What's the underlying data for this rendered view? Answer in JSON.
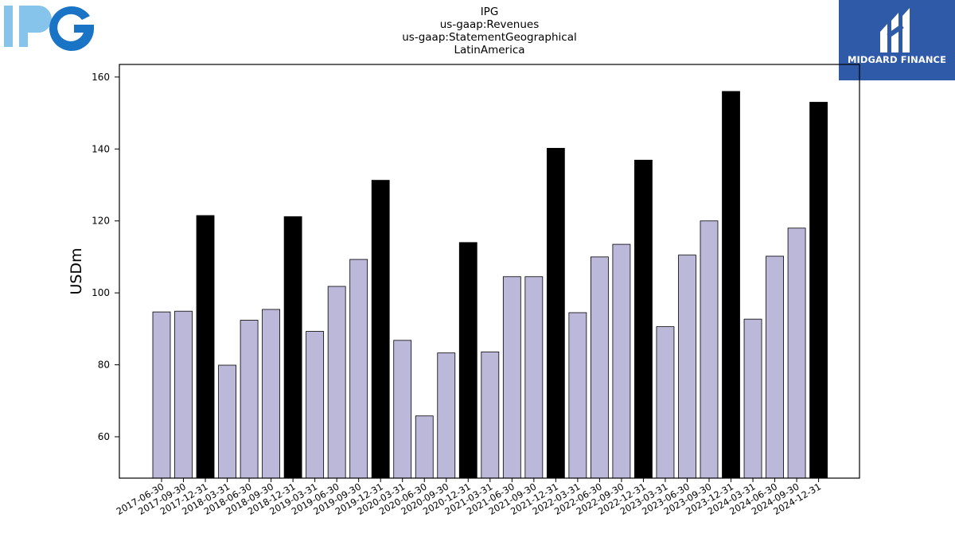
{
  "header": {
    "title_lines": [
      "IPG",
      "us-gaap:Revenues",
      "us-gaap:StatementGeographical",
      "LatinAmerica"
    ]
  },
  "logos": {
    "company_logo": "IPG",
    "brand_badge": "MIDGARD FINANCE"
  },
  "colors": {
    "bar_quarter": "#bcb8da",
    "bar_year_end": "#000000",
    "ipg_light": "#86c4ec",
    "ipg_dark": "#1a74c6",
    "brand_bg": "#2f5aa8"
  },
  "chart_data": {
    "type": "bar",
    "title": "IPG us-gaap:Revenues us-gaap:StatementGeographical LatinAmerica",
    "xlabel": "",
    "ylabel": "USDm",
    "ylim": [
      48.5,
      163.5
    ],
    "yticks": [
      60,
      80,
      100,
      120,
      140,
      160
    ],
    "grid": false,
    "categories": [
      "2017-06-30",
      "2017-09-30",
      "2017-12-31",
      "2018-03-31",
      "2018-06-30",
      "2018-09-30",
      "2018-12-31",
      "2019-03-31",
      "2019-06-30",
      "2019-09-30",
      "2019-12-31",
      "2020-03-31",
      "2020-06-30",
      "2020-09-30",
      "2020-12-31",
      "2021-03-31",
      "2021-06-30",
      "2021-09-30",
      "2021-12-31",
      "2022-03-31",
      "2022-06-30",
      "2022-09-30",
      "2022-12-31",
      "2023-03-31",
      "2023-06-30",
      "2023-09-30",
      "2023-12-31",
      "2024-03-31",
      "2024-06-30",
      "2024-09-30",
      "2024-12-31"
    ],
    "values": [
      94.7,
      94.9,
      121.5,
      79.9,
      92.4,
      95.4,
      121.2,
      89.3,
      101.8,
      109.3,
      131.3,
      86.8,
      65.8,
      83.3,
      114.0,
      83.6,
      104.5,
      104.5,
      140.2,
      94.5,
      110.0,
      113.5,
      136.9,
      90.6,
      110.5,
      120.0,
      156.0,
      92.7,
      110.2,
      118.0,
      153.0
    ]
  }
}
